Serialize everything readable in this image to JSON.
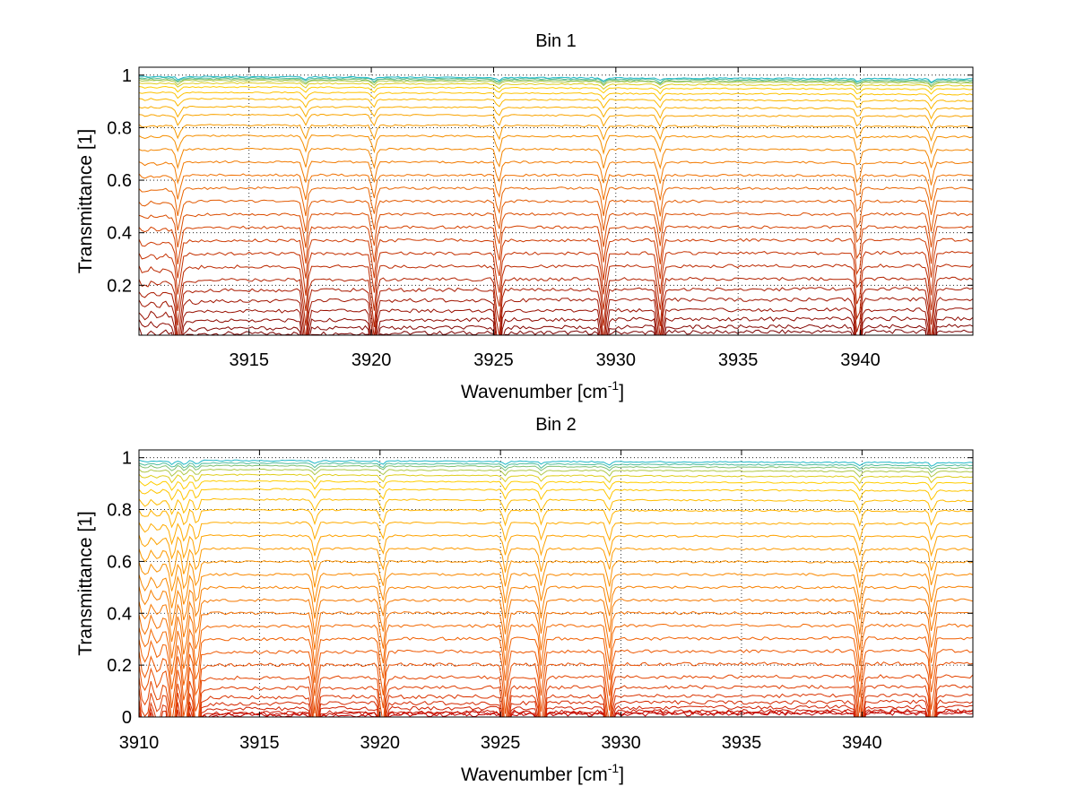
{
  "chart_data": [
    {
      "type": "line",
      "title": "Bin 1",
      "xlabel_main": "Wavenumber [cm",
      "xlabel_sup": "-1",
      "xlabel_end": "]",
      "ylabel": "Transmittance [1]",
      "xlim": [
        3910.5,
        3944.6
      ],
      "ylim": [
        0.01,
        1.03
      ],
      "xticks": [
        3915,
        3920,
        3925,
        3930,
        3935,
        3940
      ],
      "xtick_labels": [
        "3915",
        "3920",
        "3925",
        "3930",
        "3935",
        "3940"
      ],
      "yticks": [
        0.2,
        0.4,
        0.6,
        0.8,
        1
      ],
      "ytick_labels": [
        "0.2",
        "0.4",
        "0.6",
        "0.8",
        "1"
      ],
      "grid": true,
      "absorption_lines_cm1": [
        3912.1,
        3917.3,
        3920.1,
        3925.2,
        3929.5,
        3931.8,
        3939.9,
        3942.9
      ],
      "series_baselines": [
        0.015,
        0.035,
        0.065,
        0.1,
        0.14,
        0.18,
        0.22,
        0.27,
        0.32,
        0.37,
        0.42,
        0.47,
        0.52,
        0.57,
        0.62,
        0.67,
        0.72,
        0.77,
        0.81,
        0.85,
        0.88,
        0.91,
        0.935,
        0.955,
        0.97,
        0.98,
        0.985,
        0.99,
        0.995
      ],
      "colors": [
        "#7a0000",
        "#a81800",
        "#d03a00",
        "#f07000",
        "#f8a000",
        "#ffd000",
        "#20b8c8"
      ]
    },
    {
      "type": "line",
      "title": "Bin 2",
      "xlabel_main": "Wavenumber [cm",
      "xlabel_sup": "-1",
      "xlabel_end": "]",
      "ylabel": "Transmittance [1]",
      "xlim": [
        3910,
        3944.6
      ],
      "ylim": [
        0,
        1.03
      ],
      "xticks": [
        3910,
        3915,
        3920,
        3925,
        3930,
        3935,
        3940
      ],
      "xtick_labels": [
        "3910",
        "3915",
        "3920",
        "3925",
        "3930",
        "3935",
        "3940"
      ],
      "yticks": [
        0,
        0.2,
        0.4,
        0.6,
        0.8,
        1
      ],
      "ytick_labels": [
        "0",
        "0.2",
        "0.4",
        "0.6",
        "0.8",
        "1"
      ],
      "grid": true,
      "absorption_lines_cm1": [
        3911.4,
        3911.9,
        3912.4,
        3917.3,
        3920.1,
        3925.2,
        3926.7,
        3929.5,
        3939.9,
        3942.9
      ],
      "series_baselines": [
        0.005,
        0.01,
        0.015,
        0.03,
        0.05,
        0.075,
        0.11,
        0.15,
        0.2,
        0.25,
        0.3,
        0.35,
        0.4,
        0.45,
        0.5,
        0.55,
        0.6,
        0.65,
        0.7,
        0.75,
        0.8,
        0.84,
        0.88,
        0.91,
        0.935,
        0.955,
        0.97,
        0.98,
        0.99
      ],
      "colors": [
        "#c00000",
        "#d83000",
        "#f05a00",
        "#f88000",
        "#ffa800",
        "#ffd000",
        "#20b8c8"
      ]
    }
  ]
}
